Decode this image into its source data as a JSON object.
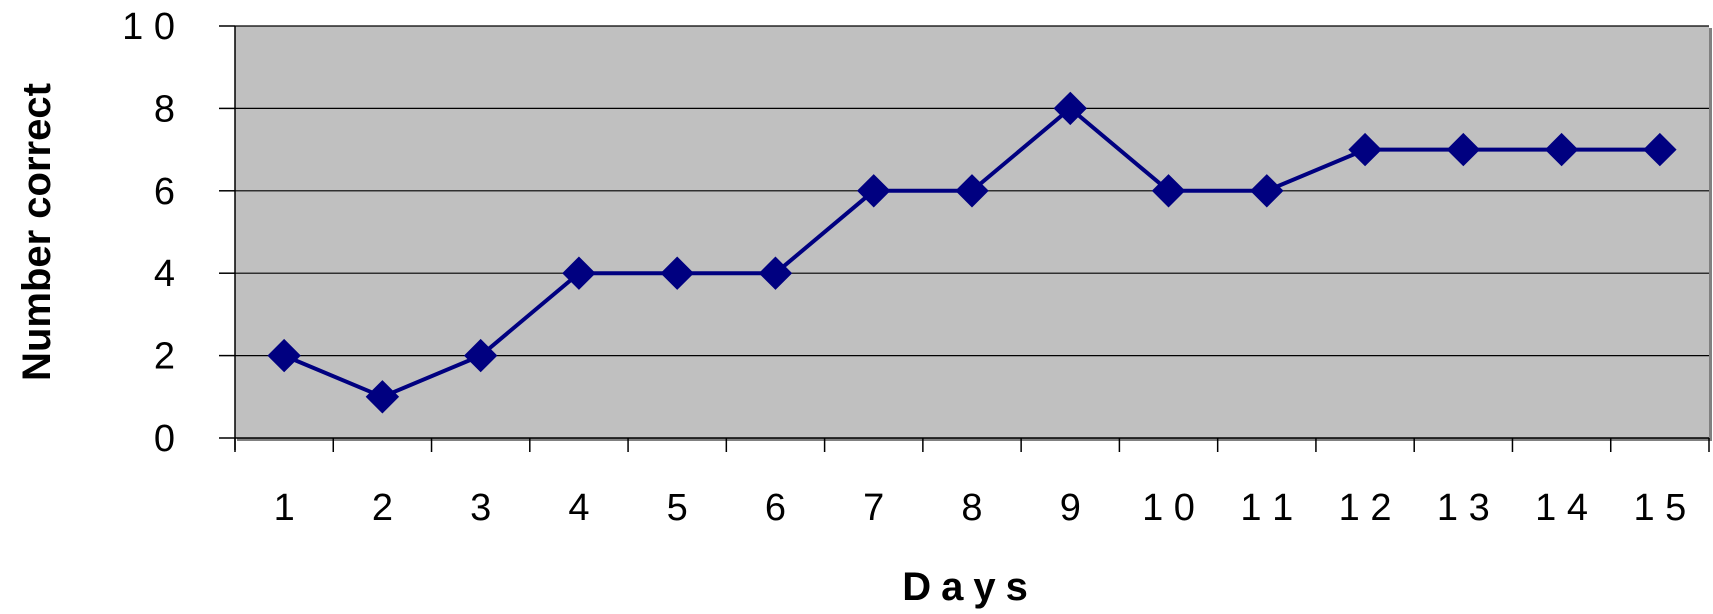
{
  "chart_data": {
    "type": "line",
    "xlabel": "Days",
    "ylabel": "Number correct",
    "x_tick_labels": [
      "1",
      "2",
      "3",
      "4",
      "5",
      "6",
      "7",
      "8",
      "9",
      "1 0",
      "1 1",
      "1 2",
      "1 3",
      "1 4",
      "1 5"
    ],
    "y_tick_labels": [
      "0",
      "2",
      "4",
      "6",
      "8",
      "1 0"
    ],
    "ylim": [
      0,
      10
    ],
    "grid": true,
    "legend": "none",
    "series": [
      {
        "values": [
          2,
          1,
          2,
          4,
          4,
          4,
          6,
          6,
          8,
          6,
          6,
          7,
          7,
          7,
          7
        ],
        "color": "#000080",
        "marker": "diamond"
      }
    ],
    "plot_background": "#c0c0c0",
    "gridline_color": "#000000"
  }
}
